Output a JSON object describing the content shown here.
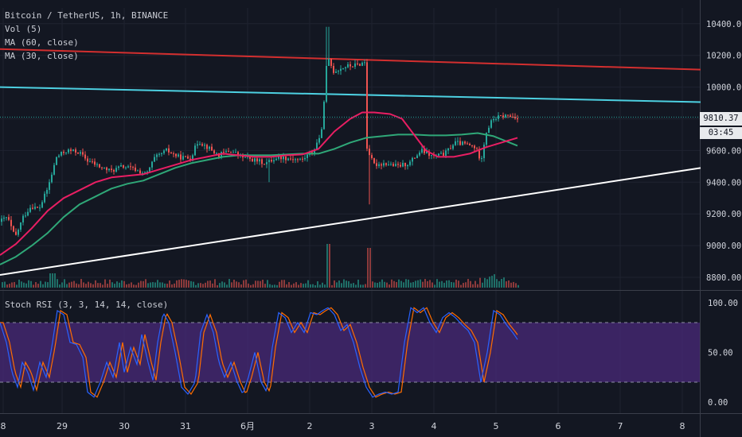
{
  "legends": {
    "symbol": "Bitcoin / TetherUS, 1h, BINANCE",
    "vol": "Vol (5)",
    "ma60": "MA (60, close)",
    "ma30": "MA (30, close)",
    "stoch": "Stoch RSI (3, 3, 14, 14, close)"
  },
  "last_price": "9810.37",
  "countdown": "03:45",
  "colors": {
    "background": "#131722",
    "up": "#26a69a",
    "down": "#ef5350",
    "ma_fast": "#e91e63",
    "ma_slow": "#2fa878",
    "trend_resistance": "#d32f2f",
    "trend_mid": "#4dd0e1",
    "trend_support": "#ffffff",
    "stoch_k": "#2962ff",
    "stoch_d": "#ff6d00",
    "stoch_band": "#4a2a7a"
  },
  "chart_data": {
    "type": "candlestick",
    "x_ticks": [
      "8",
      "29",
      "30",
      "31",
      "6月",
      "2",
      "3",
      "4",
      "5",
      "6",
      "7",
      "8"
    ],
    "price_axis": {
      "range": [
        8750,
        10500
      ],
      "ticks": [
        "10400.00",
        "10200.00",
        "10000.00",
        "9800.00",
        "9600.00",
        "9400.00",
        "9200.00",
        "9000.00",
        "8800.00"
      ]
    },
    "stoch_axis": {
      "range": [
        -10,
        105
      ],
      "ticks": [
        "100.00",
        "50.00",
        "0.00"
      ],
      "bands": [
        20,
        80
      ]
    },
    "price_anchors": [
      [
        0,
        9150
      ],
      [
        10,
        9180
      ],
      [
        20,
        9050
      ],
      [
        30,
        9180
      ],
      [
        40,
        9250
      ],
      [
        50,
        9230
      ],
      [
        60,
        9350
      ],
      [
        65,
        9430
      ],
      [
        72,
        9560
      ],
      [
        85,
        9600
      ],
      [
        100,
        9590
      ],
      [
        110,
        9540
      ],
      [
        125,
        9500
      ],
      [
        140,
        9470
      ],
      [
        155,
        9500
      ],
      [
        170,
        9480
      ],
      [
        185,
        9450
      ],
      [
        195,
        9550
      ],
      [
        210,
        9600
      ],
      [
        225,
        9560
      ],
      [
        240,
        9550
      ],
      [
        250,
        9660
      ],
      [
        262,
        9620
      ],
      [
        275,
        9570
      ],
      [
        290,
        9600
      ],
      [
        305,
        9560
      ],
      [
        320,
        9540
      ],
      [
        335,
        9520
      ],
      [
        350,
        9560
      ],
      [
        365,
        9550
      ],
      [
        380,
        9540
      ],
      [
        395,
        9600
      ],
      [
        405,
        9720
      ],
      [
        412,
        10190
      ],
      [
        420,
        10100
      ],
      [
        435,
        10130
      ],
      [
        450,
        10140
      ],
      [
        460,
        10160
      ],
      [
        462,
        9620
      ],
      [
        470,
        9510
      ],
      [
        485,
        9520
      ],
      [
        500,
        9500
      ],
      [
        515,
        9520
      ],
      [
        530,
        9600
      ],
      [
        545,
        9560
      ],
      [
        560,
        9580
      ],
      [
        572,
        9650
      ],
      [
        585,
        9640
      ],
      [
        598,
        9620
      ],
      [
        605,
        9540
      ],
      [
        612,
        9720
      ],
      [
        620,
        9800
      ],
      [
        635,
        9820
      ],
      [
        650,
        9810
      ]
    ],
    "ma_fast": [
      [
        0,
        8940
      ],
      [
        20,
        9010
      ],
      [
        40,
        9110
      ],
      [
        60,
        9220
      ],
      [
        80,
        9300
      ],
      [
        100,
        9350
      ],
      [
        120,
        9400
      ],
      [
        140,
        9430
      ],
      [
        160,
        9440
      ],
      [
        180,
        9450
      ],
      [
        200,
        9480
      ],
      [
        220,
        9510
      ],
      [
        240,
        9540
      ],
      [
        260,
        9560
      ],
      [
        280,
        9580
      ],
      [
        300,
        9570
      ],
      [
        320,
        9560
      ],
      [
        340,
        9560
      ],
      [
        360,
        9570
      ],
      [
        380,
        9575
      ],
      [
        400,
        9610
      ],
      [
        420,
        9720
      ],
      [
        440,
        9800
      ],
      [
        455,
        9840
      ],
      [
        470,
        9840
      ],
      [
        490,
        9830
      ],
      [
        505,
        9800
      ],
      [
        520,
        9700
      ],
      [
        535,
        9600
      ],
      [
        550,
        9560
      ],
      [
        570,
        9560
      ],
      [
        590,
        9580
      ],
      [
        610,
        9620
      ],
      [
        630,
        9650
      ],
      [
        650,
        9680
      ]
    ],
    "ma_slow": [
      [
        0,
        8880
      ],
      [
        20,
        8930
      ],
      [
        40,
        9000
      ],
      [
        60,
        9080
      ],
      [
        80,
        9180
      ],
      [
        100,
        9260
      ],
      [
        120,
        9310
      ],
      [
        140,
        9360
      ],
      [
        160,
        9390
      ],
      [
        180,
        9410
      ],
      [
        200,
        9450
      ],
      [
        220,
        9490
      ],
      [
        240,
        9520
      ],
      [
        260,
        9540
      ],
      [
        280,
        9560
      ],
      [
        300,
        9570
      ],
      [
        320,
        9570
      ],
      [
        340,
        9570
      ],
      [
        360,
        9575
      ],
      [
        380,
        9580
      ],
      [
        400,
        9580
      ],
      [
        420,
        9610
      ],
      [
        440,
        9650
      ],
      [
        460,
        9680
      ],
      [
        480,
        9690
      ],
      [
        500,
        9700
      ],
      [
        520,
        9700
      ],
      [
        540,
        9695
      ],
      [
        560,
        9695
      ],
      [
        580,
        9700
      ],
      [
        600,
        9710
      ],
      [
        620,
        9690
      ],
      [
        640,
        9650
      ],
      [
        650,
        9630
      ]
    ],
    "trendlines": [
      {
        "name": "resistance",
        "from": [
          0,
          10240
        ],
        "to": [
          880,
          10110
        ]
      },
      {
        "name": "mid",
        "from": [
          0,
          10000
        ],
        "to": [
          880,
          9905
        ]
      },
      {
        "name": "support",
        "from": [
          0,
          8815
        ],
        "to": [
          880,
          9490
        ]
      }
    ],
    "stoch_anchors": [
      [
        0,
        80
      ],
      [
        8,
        60
      ],
      [
        15,
        30
      ],
      [
        22,
        15
      ],
      [
        28,
        40
      ],
      [
        35,
        30
      ],
      [
        42,
        12
      ],
      [
        50,
        40
      ],
      [
        58,
        25
      ],
      [
        65,
        55
      ],
      [
        72,
        92
      ],
      [
        80,
        88
      ],
      [
        88,
        60
      ],
      [
        96,
        58
      ],
      [
        104,
        45
      ],
      [
        110,
        10
      ],
      [
        118,
        5
      ],
      [
        126,
        20
      ],
      [
        134,
        40
      ],
      [
        142,
        25
      ],
      [
        150,
        60
      ],
      [
        156,
        30
      ],
      [
        164,
        55
      ],
      [
        172,
        38
      ],
      [
        178,
        68
      ],
      [
        186,
        40
      ],
      [
        192,
        22
      ],
      [
        198,
        60
      ],
      [
        205,
        90
      ],
      [
        212,
        80
      ],
      [
        220,
        50
      ],
      [
        228,
        15
      ],
      [
        236,
        8
      ],
      [
        245,
        20
      ],
      [
        252,
        70
      ],
      [
        260,
        88
      ],
      [
        268,
        70
      ],
      [
        275,
        40
      ],
      [
        282,
        25
      ],
      [
        290,
        40
      ],
      [
        298,
        20
      ],
      [
        305,
        8
      ],
      [
        312,
        25
      ],
      [
        320,
        50
      ],
      [
        328,
        20
      ],
      [
        335,
        10
      ],
      [
        342,
        55
      ],
      [
        350,
        90
      ],
      [
        358,
        85
      ],
      [
        366,
        70
      ],
      [
        374,
        80
      ],
      [
        382,
        70
      ],
      [
        390,
        90
      ],
      [
        398,
        88
      ],
      [
        405,
        92
      ],
      [
        412,
        95
      ],
      [
        420,
        88
      ],
      [
        428,
        72
      ],
      [
        436,
        78
      ],
      [
        444,
        60
      ],
      [
        452,
        35
      ],
      [
        460,
        15
      ],
      [
        468,
        5
      ],
      [
        476,
        8
      ],
      [
        484,
        10
      ],
      [
        492,
        8
      ],
      [
        500,
        10
      ],
      [
        508,
        60
      ],
      [
        516,
        95
      ],
      [
        524,
        90
      ],
      [
        532,
        95
      ],
      [
        540,
        80
      ],
      [
        548,
        70
      ],
      [
        556,
        85
      ],
      [
        564,
        90
      ],
      [
        572,
        85
      ],
      [
        580,
        78
      ],
      [
        588,
        72
      ],
      [
        596,
        60
      ],
      [
        604,
        20
      ],
      [
        612,
        50
      ],
      [
        620,
        92
      ],
      [
        628,
        88
      ],
      [
        636,
        78
      ],
      [
        644,
        70
      ],
      [
        650,
        63
      ]
    ]
  }
}
